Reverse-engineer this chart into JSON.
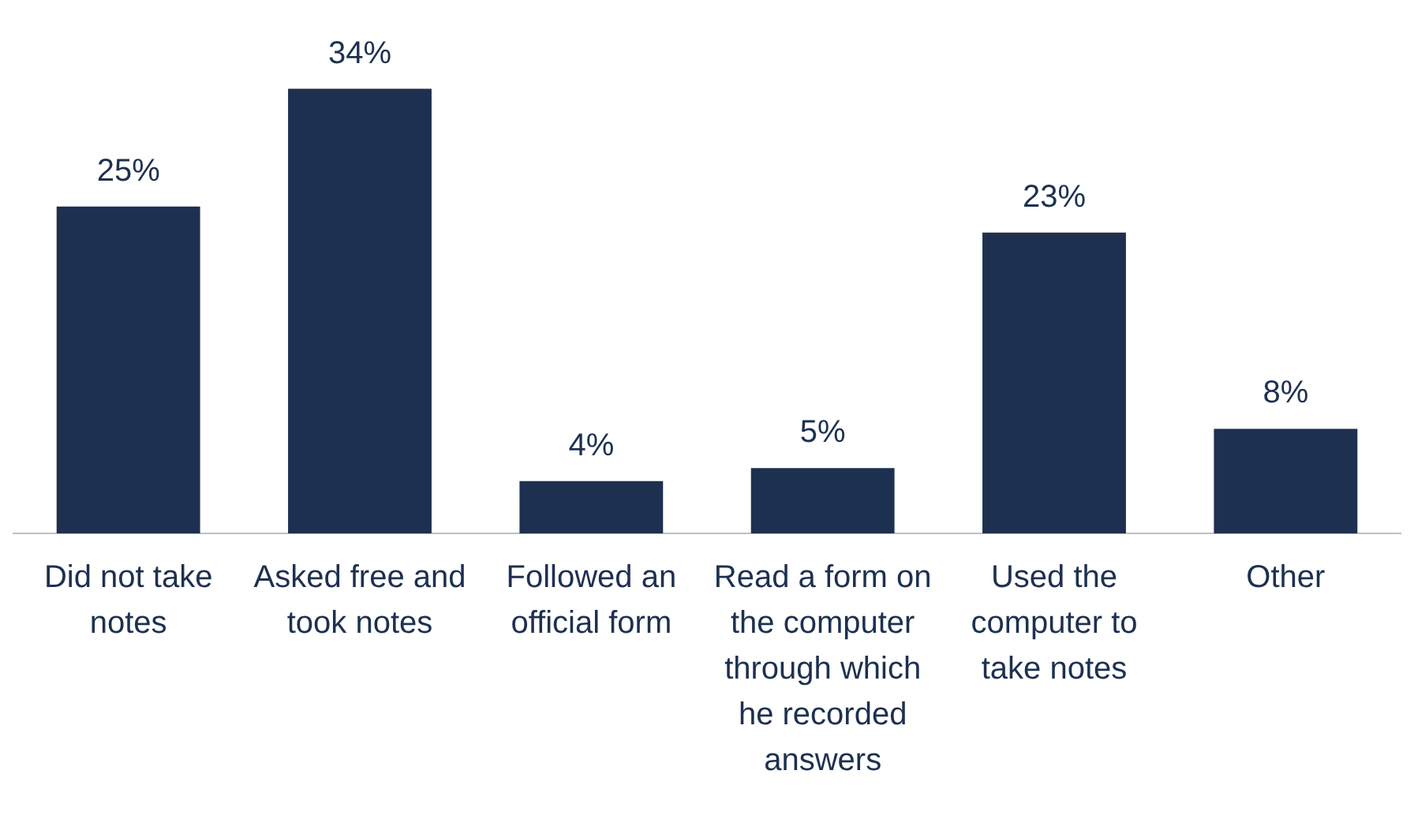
{
  "chart_data": {
    "type": "bar",
    "categories": [
      "Did not take notes",
      "Asked free and took notes",
      "Followed an official form",
      "Read a form on the computer through which he recorded answers",
      "Used the computer to take notes",
      "Other"
    ],
    "values": [
      25,
      34,
      4,
      5,
      23,
      8
    ],
    "value_labels": [
      "25%",
      "34%",
      "4%",
      "5%",
      "23%",
      "8%"
    ],
    "color": "#1d3050",
    "grid": false,
    "legend": false
  }
}
